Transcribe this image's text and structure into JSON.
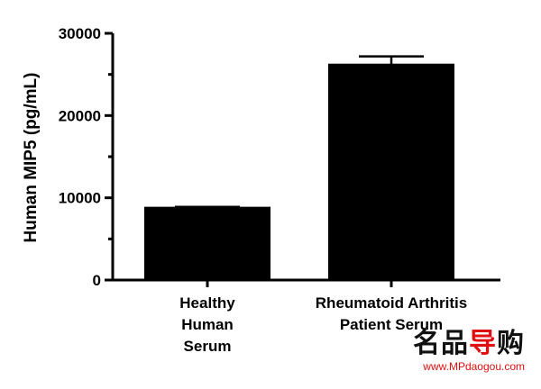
{
  "chart_data": {
    "type": "bar",
    "categories": [
      "Healthy Human Serum",
      "Rheumatoid Arthritis Patient Serum"
    ],
    "category_label_lines": [
      [
        "Healthy",
        "Human",
        "Serum"
      ],
      [
        "Rheumatoid Arthritis",
        "Patient Serum"
      ]
    ],
    "values": [
      8800,
      26200
    ],
    "error_upper": [
      8900,
      27200
    ],
    "ylabel": "Human MIP5 (pg/mL)",
    "xlabel": "",
    "ylim": [
      0,
      30000
    ],
    "yticks": [
      0,
      10000,
      20000,
      30000
    ],
    "yticks_labels": [
      "0",
      "10000",
      "20000",
      "30000"
    ],
    "bar_color": "#000000",
    "grid": false
  },
  "watermark": {
    "logo_main": "名品",
    "logo_accent": "导",
    "logo_end": "购",
    "url": "www.MPdaogou.com"
  }
}
